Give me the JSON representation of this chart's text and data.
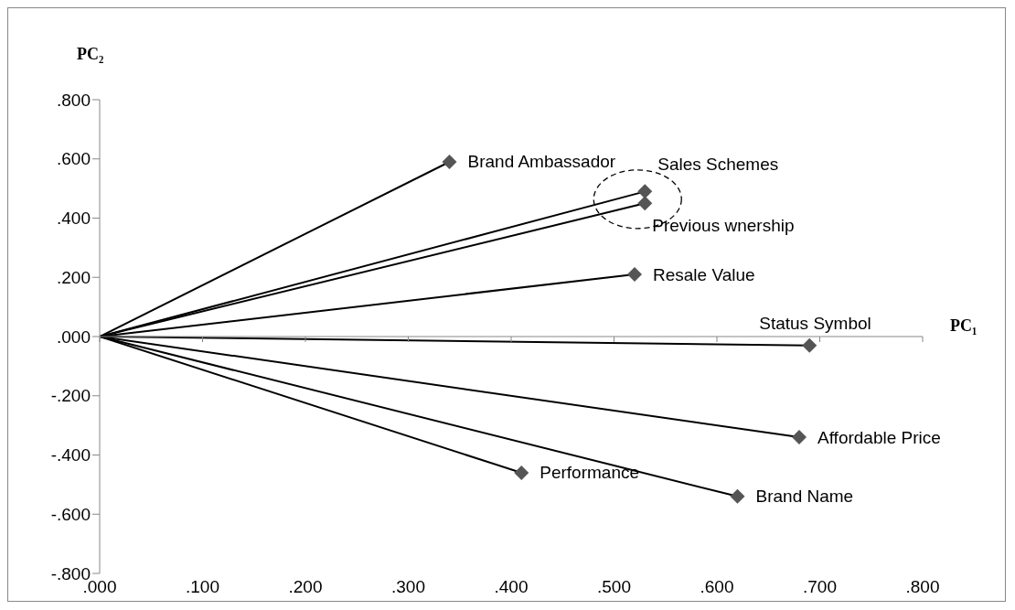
{
  "chart_data": {
    "type": "line",
    "xlabel": "PC₁",
    "ylabel": "PC₂",
    "marker": "diamond",
    "line_style": "solid",
    "xlim": [
      0,
      0.8
    ],
    "ylim": [
      -0.8,
      0.8
    ],
    "xticks": [
      {
        "value": 0,
        "label": ".000"
      },
      {
        "value": 0.1,
        "label": ".100"
      },
      {
        "value": 0.2,
        "label": ".200"
      },
      {
        "value": 0.3,
        "label": ".300"
      },
      {
        "value": 0.4,
        "label": ".400"
      },
      {
        "value": 0.5,
        "label": ".500"
      },
      {
        "value": 0.6,
        "label": ".600"
      },
      {
        "value": 0.7,
        "label": ".700"
      },
      {
        "value": 0.8,
        "label": ".800"
      }
    ],
    "yticks": [
      {
        "value": -0.8,
        "label": "-.800"
      },
      {
        "value": -0.6,
        "label": "-.600"
      },
      {
        "value": -0.4,
        "label": "-.400"
      },
      {
        "value": -0.2,
        "label": "-.200"
      },
      {
        "value": 0,
        "label": ".000"
      },
      {
        "value": 0.2,
        "label": ".200"
      },
      {
        "value": 0.4,
        "label": ".400"
      },
      {
        "value": 0.6,
        "label": ".600"
      },
      {
        "value": 0.8,
        "label": ".800"
      }
    ],
    "series": [
      {
        "name": "Brand Ambassador",
        "color": "#000000",
        "x": [
          0,
          0.34
        ],
        "values": [
          0,
          0.59
        ]
      },
      {
        "name": "Sales Schemes",
        "color": "#000000",
        "x": [
          0,
          0.53
        ],
        "values": [
          0,
          0.49
        ]
      },
      {
        "name": "Previous wnership",
        "color": "#000000",
        "x": [
          0,
          0.53
        ],
        "values": [
          0,
          0.45
        ]
      },
      {
        "name": "Resale Value",
        "color": "#000000",
        "x": [
          0,
          0.52
        ],
        "values": [
          0,
          0.21
        ]
      },
      {
        "name": "Status Symbol",
        "color": "#000000",
        "x": [
          0,
          0.69
        ],
        "values": [
          0,
          -0.03
        ]
      },
      {
        "name": "Affordable Price",
        "color": "#000000",
        "x": [
          0,
          0.68
        ],
        "values": [
          0,
          -0.34
        ]
      },
      {
        "name": "Performance",
        "color": "#000000",
        "x": [
          0,
          0.41
        ],
        "values": [
          0,
          -0.46
        ]
      },
      {
        "name": "Brand Name",
        "color": "#000000",
        "x": [
          0,
          0.62
        ],
        "values": [
          0,
          -0.54
        ]
      }
    ]
  }
}
